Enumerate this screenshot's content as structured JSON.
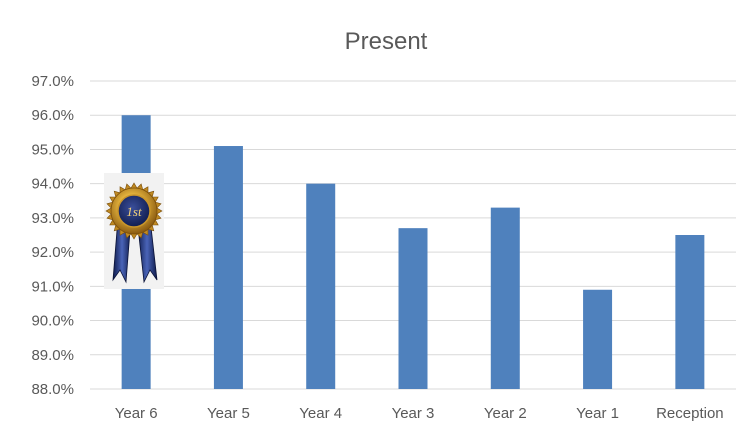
{
  "chart_data": {
    "type": "bar",
    "title": "Present",
    "xlabel": "",
    "ylabel": "",
    "categories": [
      "Year 6",
      "Year 5",
      "Year 4",
      "Year 3",
      "Year 2",
      "Year 1",
      "Reception"
    ],
    "values": [
      96.0,
      95.1,
      94.0,
      92.7,
      93.3,
      90.9,
      92.5
    ],
    "ylim": [
      88.0,
      97.0
    ],
    "yticks": [
      "88.0%",
      "89.0%",
      "90.0%",
      "91.0%",
      "92.0%",
      "93.0%",
      "94.0%",
      "95.0%",
      "96.0%",
      "97.0%"
    ],
    "grid": true,
    "legend": "none",
    "bar_color": "#4f81bd",
    "grid_color": "#d9d9d9",
    "text_color": "#595959"
  },
  "badge": {
    "text": "1st",
    "icon": "first-place-rosette-icon",
    "attached_to": "Year 6"
  }
}
